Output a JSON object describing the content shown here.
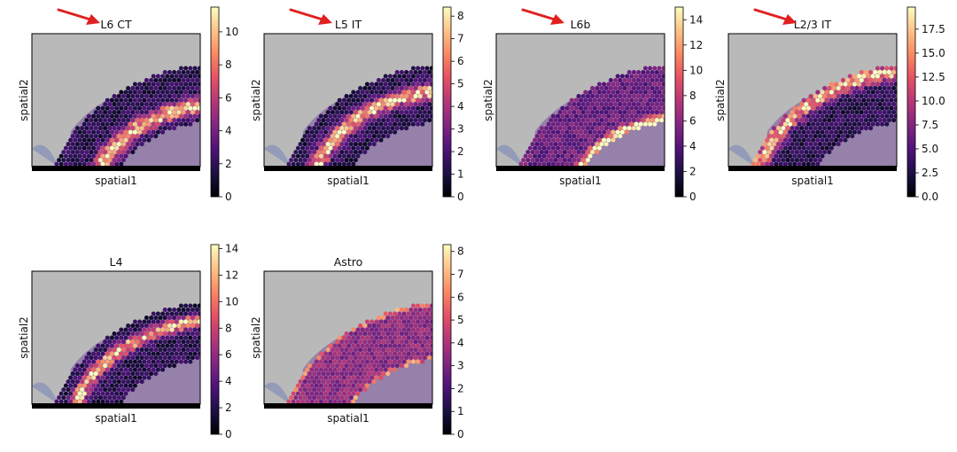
{
  "colormap": [
    "#000004",
    "#1c1044",
    "#4f127b",
    "#812581",
    "#b5367a",
    "#e55064",
    "#fb8761",
    "#fec287",
    "#fcfdbf"
  ],
  "tissue_color": "#8a6fa4",
  "background_color": "#b9b9b9",
  "arrow_color": "#e02020",
  "chart_data": [
    {
      "type": "heatmap",
      "title": "L6 CT",
      "xlabel": "spatial1",
      "ylabel": "spatial2",
      "colorbar": {
        "range": [
          0,
          11.5
        ],
        "ticks": [
          "0",
          "2",
          "4",
          "6",
          "8",
          "10"
        ]
      },
      "highlight": {
        "band": "deep",
        "peak": 1.0,
        "width": 0.14
      },
      "arrow": true
    },
    {
      "type": "heatmap",
      "title": "L5 IT",
      "xlabel": "spatial1",
      "ylabel": "spatial2",
      "colorbar": {
        "range": [
          0,
          8.4
        ],
        "ticks": [
          "0",
          "1",
          "2",
          "3",
          "4",
          "5",
          "6",
          "7",
          "8"
        ]
      },
      "highlight": {
        "band": "mid",
        "peak": 1.0,
        "width": 0.13
      },
      "arrow": true
    },
    {
      "type": "heatmap",
      "title": "L6b",
      "xlabel": "spatial1",
      "ylabel": "spatial2",
      "colorbar": {
        "range": [
          0,
          15
        ],
        "ticks": [
          "0",
          "2",
          "4",
          "6",
          "8",
          "10",
          "12",
          "14"
        ]
      },
      "highlight": {
        "band": "inner-edge",
        "peak": 1.0,
        "width": 0.08
      },
      "arrow": true
    },
    {
      "type": "heatmap",
      "title": "L2/3 IT",
      "xlabel": "spatial1",
      "ylabel": "spatial2",
      "colorbar": {
        "range": [
          0,
          19.8
        ],
        "ticks": [
          "0.0",
          "2.5",
          "5.0",
          "7.5",
          "10.0",
          "12.5",
          "15.0",
          "17.5"
        ]
      },
      "highlight": {
        "band": "outer",
        "peak": 1.0,
        "width": 0.14
      },
      "arrow": true
    },
    {
      "type": "heatmap",
      "title": "L4",
      "xlabel": "spatial1",
      "ylabel": "spatial2",
      "colorbar": {
        "range": [
          0,
          14.3
        ],
        "ticks": [
          "0",
          "2",
          "4",
          "6",
          "8",
          "10",
          "12",
          "14"
        ]
      },
      "highlight": {
        "band": "upper-mid",
        "peak": 1.0,
        "width": 0.11
      },
      "arrow": false
    },
    {
      "type": "heatmap",
      "title": "Astro",
      "xlabel": "spatial1",
      "ylabel": "spatial2",
      "colorbar": {
        "range": [
          0,
          8.3
        ],
        "ticks": [
          "0",
          "1",
          "2",
          "3",
          "4",
          "5",
          "6",
          "7",
          "8"
        ]
      },
      "highlight": {
        "band": "edges",
        "peak": 0.85,
        "width": 0.06
      },
      "arrow": false
    }
  ]
}
